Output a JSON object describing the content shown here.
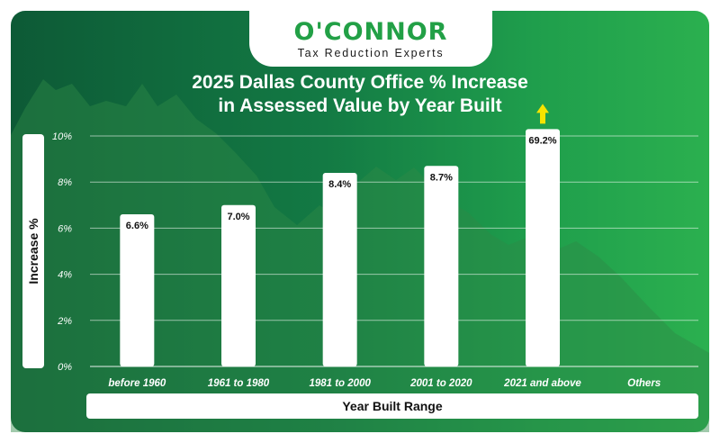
{
  "brand": {
    "logo_text": "O'CONNOR",
    "tagline": "Tax Reduction Experts",
    "accent": "#22a046"
  },
  "chart_data": {
    "type": "bar",
    "title_line1": "2025 Dallas County Office % Increase",
    "title_line2": "in Assessed Value by Year Built",
    "xlabel": "Year Built Range",
    "ylabel": "Increase %",
    "categories": [
      "before 1960",
      "1961 to 1980",
      "1981 to 2000",
      "2001 to 2020",
      "2021 and above",
      "Others"
    ],
    "values": [
      6.6,
      7.0,
      8.4,
      8.7,
      69.2,
      null
    ],
    "data_labels": [
      "6.6%",
      "7.0%",
      "8.4%",
      "8.7%",
      "69.2%",
      ""
    ],
    "clipped_indicator": [
      false,
      false,
      false,
      false,
      true,
      false
    ],
    "ylim": [
      0,
      10
    ],
    "yticks": [
      0,
      2,
      4,
      6,
      8,
      10
    ],
    "ytick_labels": [
      "0%",
      "2%",
      "4%",
      "6%",
      "8%",
      "10%"
    ],
    "grid": true,
    "bar_color": "#ffffff",
    "arrow_color": "#f5e400"
  }
}
